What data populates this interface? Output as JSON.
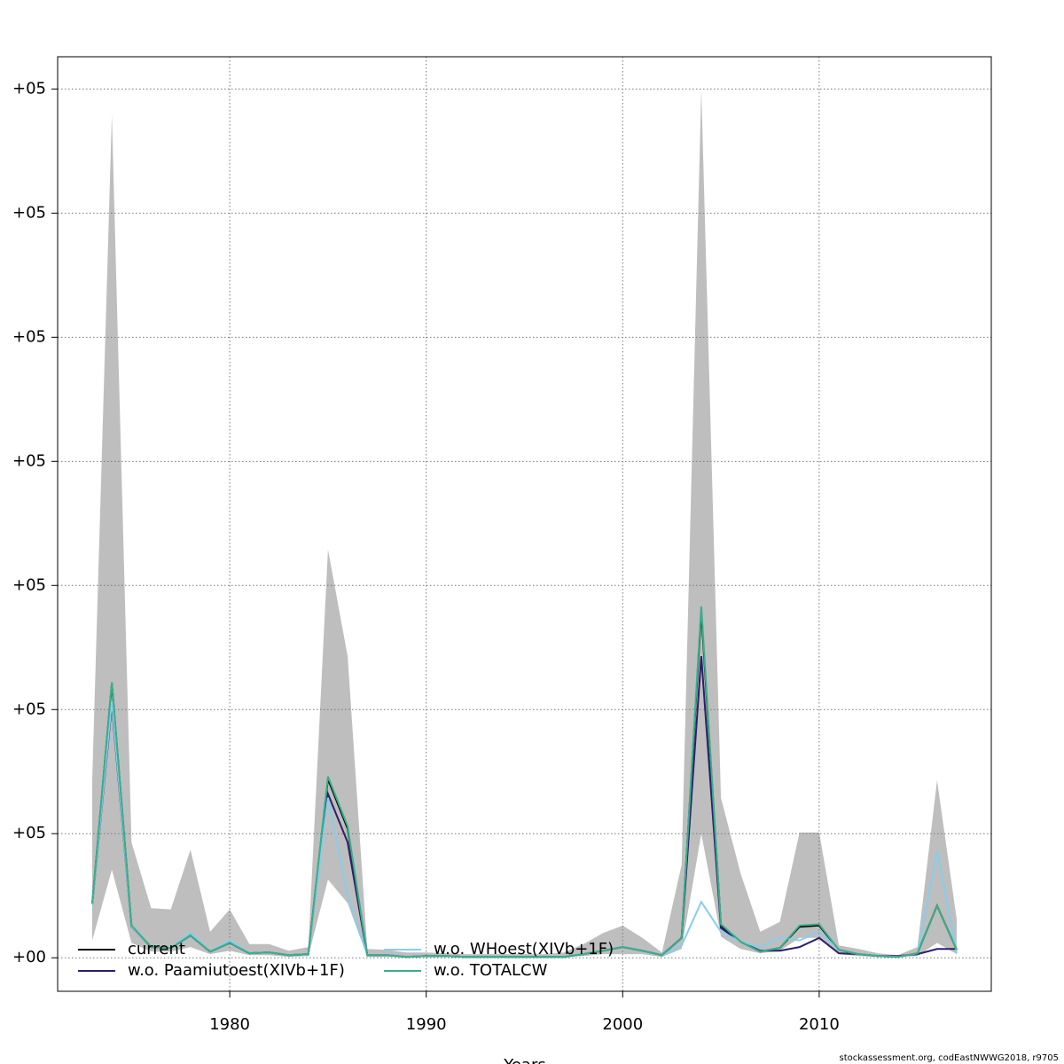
{
  "chart_data": {
    "type": "line",
    "x_label": "Years",
    "footer": "stockassessment.org, codEastNWWG2018, r9705",
    "x": [
      1973,
      1974,
      1975,
      1976,
      1977,
      1978,
      1979,
      1980,
      1981,
      1982,
      1983,
      1984,
      1985,
      1986,
      1987,
      1988,
      1989,
      1990,
      1991,
      1992,
      1993,
      1994,
      1995,
      1996,
      1997,
      1998,
      1999,
      2000,
      2001,
      2002,
      2003,
      2004,
      2005,
      2006,
      2007,
      2008,
      2009,
      2010,
      2011,
      2012,
      2013,
      2014,
      2015,
      2016,
      2017
    ],
    "band": {
      "color": "#bebebe",
      "low": [
        14000,
        71000,
        12000,
        5000,
        5000,
        8600,
        2900,
        5700,
        2100,
        2100,
        700,
        1400,
        63000,
        44000,
        700,
        700,
        700,
        700,
        700,
        700,
        700,
        700,
        700,
        700,
        700,
        1400,
        2900,
        2900,
        2900,
        700,
        7100,
        100000,
        17000,
        7100,
        3600,
        5700,
        16000,
        16000,
        2900,
        1400,
        700,
        700,
        1400,
        12000,
        2900
      ],
      "high": [
        143000,
        679000,
        93000,
        40000,
        39000,
        87000,
        21000,
        39000,
        11000,
        11000,
        5700,
        8600,
        329000,
        243000,
        7100,
        6400,
        4300,
        4300,
        3600,
        2900,
        2900,
        2900,
        2900,
        2900,
        4300,
        11000,
        20000,
        26000,
        16000,
        4300,
        75000,
        700000,
        129000,
        68000,
        21000,
        29000,
        101000,
        101000,
        10000,
        7100,
        3600,
        2100,
        8600,
        143000,
        31000
      ]
    },
    "series": [
      {
        "name": "current",
        "color": "#000000",
        "values": [
          43000,
          221000,
          25000,
          8600,
          7900,
          18000,
          5000,
          12000,
          3600,
          4300,
          2100,
          2900,
          144000,
          104000,
          2100,
          2100,
          700,
          1400,
          1400,
          700,
          700,
          700,
          700,
          700,
          700,
          2900,
          5700,
          8600,
          5700,
          2100,
          16000,
          279000,
          26000,
          13000,
          5000,
          7900,
          25000,
          26000,
          6400,
          2900,
          1400,
          700,
          3600,
          42000,
          6400
        ]
      },
      {
        "name": "w.o. Paamiutoest(XIVb+1F)",
        "color": "#2d1e6b",
        "values": [
          43000,
          204000,
          25000,
          8600,
          7900,
          18000,
          5000,
          12000,
          3600,
          4300,
          2100,
          2900,
          132000,
          93000,
          2100,
          2100,
          700,
          1400,
          1400,
          700,
          700,
          700,
          700,
          700,
          700,
          2900,
          5700,
          8600,
          5700,
          2100,
          16000,
          243000,
          24000,
          13000,
          5700,
          5700,
          8600,
          16000,
          3600,
          2900,
          1400,
          1400,
          2900,
          7100,
          7100
        ]
      },
      {
        "name": "w.o. WHoest(XIVb+1F)",
        "color": "#87ceeb",
        "values": [
          43000,
          207000,
          25000,
          8600,
          7900,
          20000,
          5000,
          14000,
          3600,
          4300,
          2100,
          2900,
          129000,
          50000,
          2100,
          2100,
          700,
          1400,
          1400,
          700,
          700,
          700,
          700,
          700,
          700,
          2900,
          5700,
          8600,
          5700,
          2100,
          10000,
          45000,
          21000,
          13000,
          8600,
          16000,
          14000,
          21000,
          6400,
          2900,
          1400,
          700,
          3600,
          86000,
          3600
        ]
      },
      {
        "name": "w.o. TOTALCW",
        "color": "#3aae8a",
        "values": [
          44000,
          222000,
          26000,
          8600,
          7900,
          18000,
          5000,
          12000,
          3600,
          4300,
          2100,
          2900,
          146000,
          106000,
          2100,
          2100,
          700,
          1400,
          1400,
          700,
          700,
          700,
          700,
          700,
          700,
          2900,
          5700,
          8600,
          5700,
          2100,
          16000,
          283000,
          27000,
          13000,
          5000,
          7900,
          26000,
          27000,
          6400,
          2900,
          1400,
          700,
          3600,
          42000,
          6400
        ]
      }
    ],
    "xlim": [
      1971.24,
      2018.76
    ],
    "ylim": [
      -27000,
      726000
    ],
    "xticks": [
      1980,
      1990,
      2000,
      2010
    ],
    "yticks": [
      {
        "value": 0,
        "label": "+00"
      },
      {
        "value": 100000,
        "label": "+05"
      },
      {
        "value": 200000,
        "label": "+05"
      },
      {
        "value": 300000,
        "label": "+05"
      },
      {
        "value": 400000,
        "label": "+05"
      },
      {
        "value": 500000,
        "label": "+05"
      },
      {
        "value": 600000,
        "label": "+05"
      },
      {
        "value": 700000,
        "label": "+05"
      }
    ],
    "grid": true,
    "legend": "bottom-left"
  }
}
